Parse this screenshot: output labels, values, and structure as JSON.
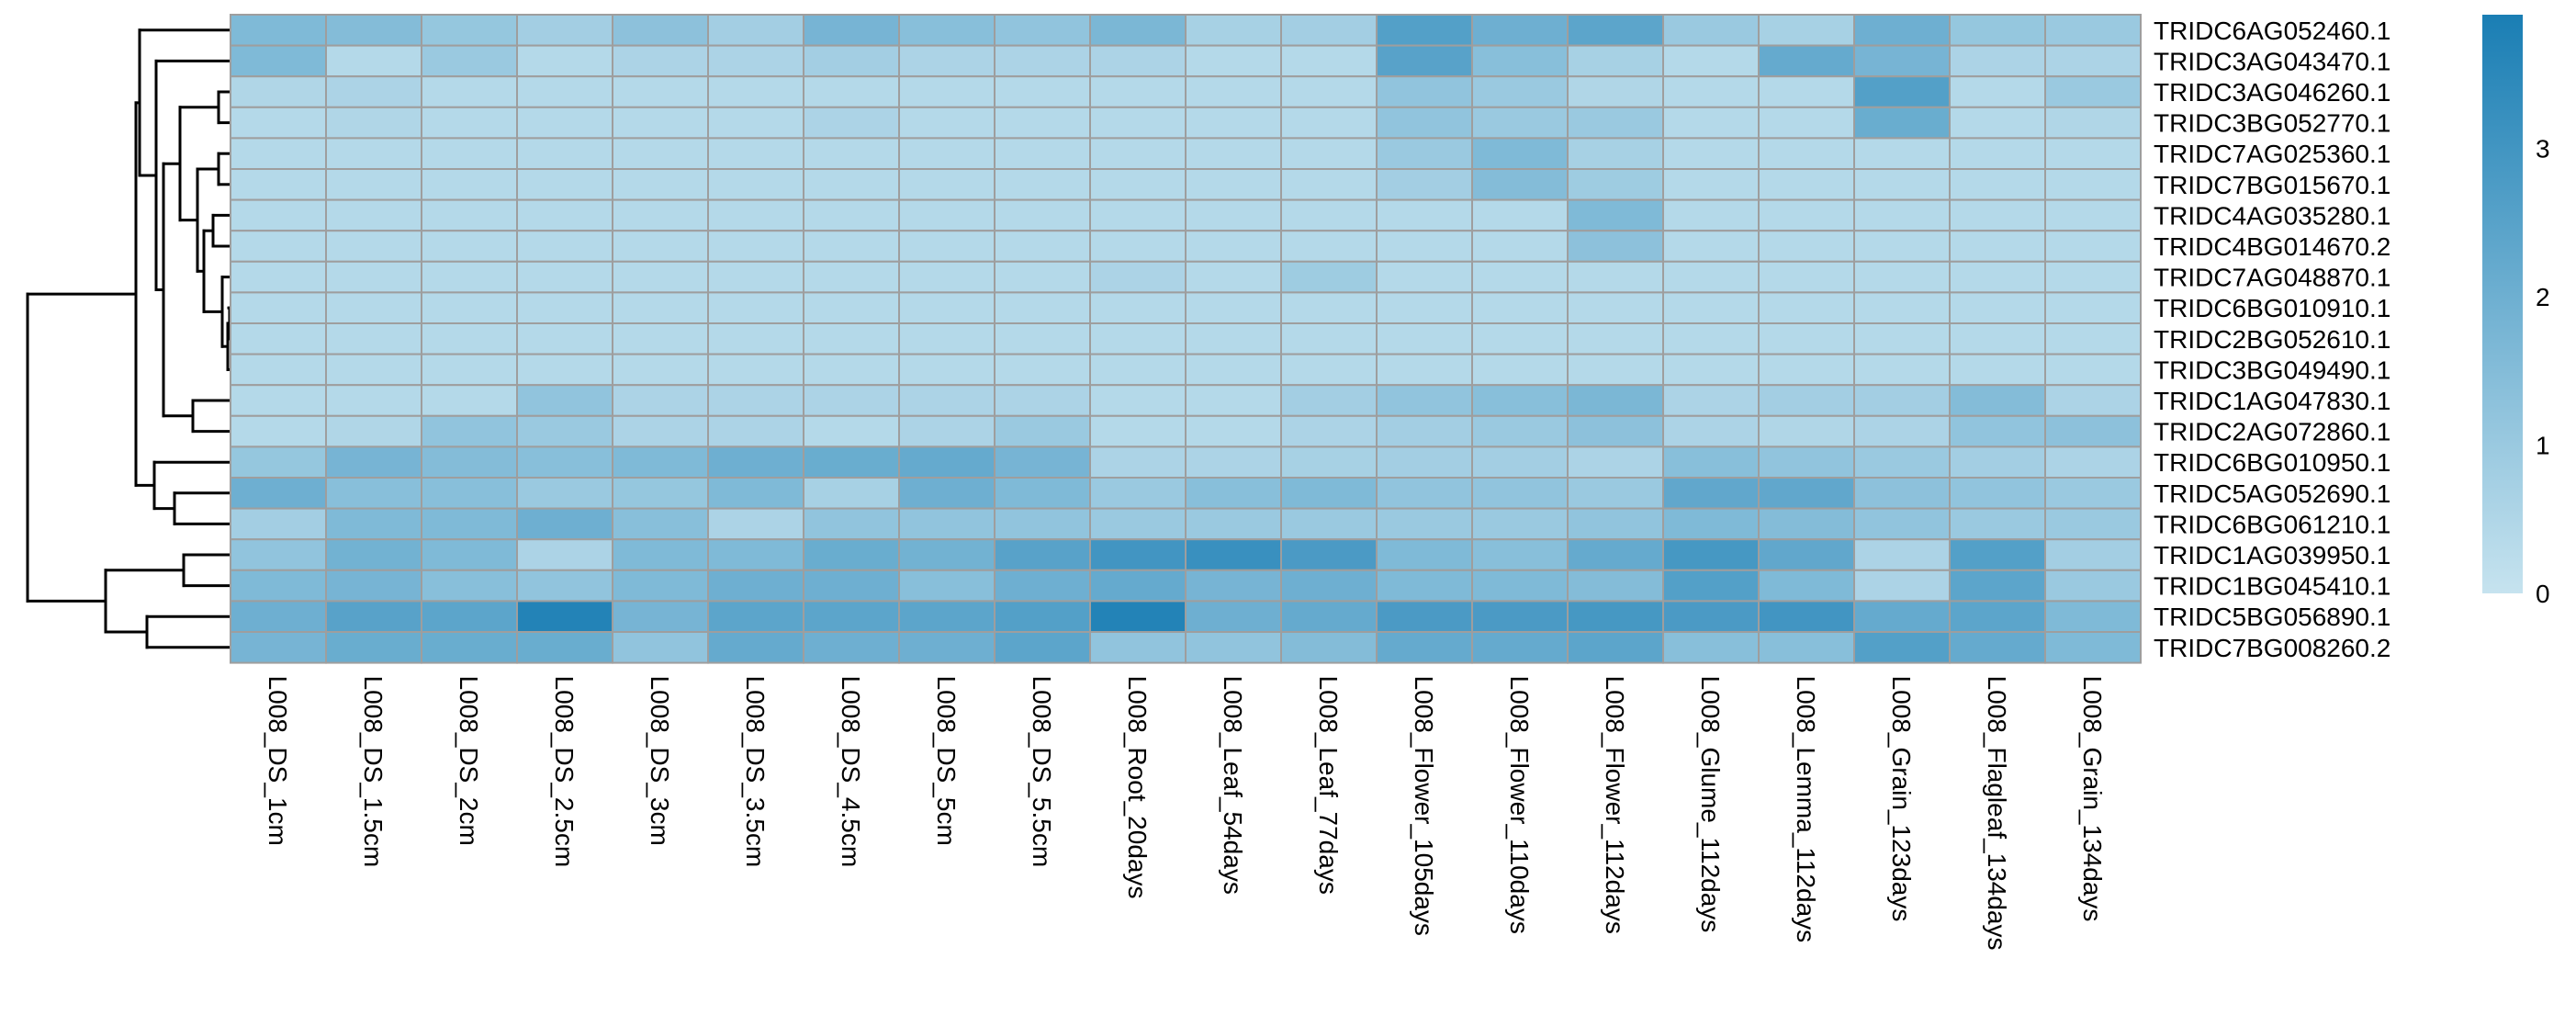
{
  "chart_data": {
    "type": "heatmap",
    "rows": [
      "TRIDC6AG052460.1",
      "TRIDC3AG043470.1",
      "TRIDC3AG046260.1",
      "TRIDC3BG052770.1",
      "TRIDC7AG025360.1",
      "TRIDC7BG015670.1",
      "TRIDC4AG035280.1",
      "TRIDC4BG014670.2",
      "TRIDC7AG048870.1",
      "TRIDC6BG010910.1",
      "TRIDC2BG052610.1",
      "TRIDC3BG049490.1",
      "TRIDC1AG047830.1",
      "TRIDC2AG072860.1",
      "TRIDC6BG010950.1",
      "TRIDC5AG052690.1",
      "TRIDC6BG061210.1",
      "TRIDC1AG039950.1",
      "TRIDC1BG045410.1",
      "TRIDC5BG056890.1",
      "TRIDC7BG008260.2"
    ],
    "columns": [
      "L008_DS_1cm",
      "L008_DS_1.5cm",
      "L008_DS_2cm",
      "L008_DS_2.5cm",
      "L008_DS_3cm",
      "L008_DS_3.5cm",
      "L008_DS_4.5cm",
      "L008_DS_5cm",
      "L008_DS_5.5cm",
      "L008_Root_20days",
      "L008_Leaf_54days",
      "L008_Leaf_77days",
      "L008_Flower_105days",
      "L008_Flower_110days",
      "L008_Flower_112days",
      "L008_Glume_112days",
      "L008_Lemma_112days",
      "L008_Grain_123days",
      "L008_Flagleaf_134days",
      "L008_Grain_134days"
    ],
    "values": [
      [
        1.6,
        1.5,
        1.1,
        0.8,
        1.3,
        0.8,
        1.8,
        1.4,
        1.2,
        1.7,
        0.7,
        0.8,
        2.6,
        2.0,
        2.4,
        1.0,
        0.7,
        2.0,
        1.1,
        1.0
      ],
      [
        1.6,
        0.4,
        1.0,
        0.4,
        0.6,
        0.6,
        0.8,
        0.6,
        0.6,
        0.6,
        0.4,
        0.4,
        2.5,
        1.4,
        0.7,
        0.4,
        2.2,
        1.8,
        0.6,
        0.6
      ],
      [
        0.5,
        0.6,
        0.4,
        0.4,
        0.4,
        0.4,
        0.4,
        0.4,
        0.4,
        0.4,
        0.4,
        0.4,
        1.2,
        1.0,
        0.5,
        0.4,
        0.4,
        2.6,
        0.4,
        1.0
      ],
      [
        0.4,
        0.5,
        0.4,
        0.4,
        0.4,
        0.4,
        0.6,
        0.4,
        0.4,
        0.4,
        0.4,
        0.4,
        1.2,
        1.0,
        1.0,
        0.4,
        0.4,
        2.1,
        0.4,
        0.5
      ],
      [
        0.4,
        0.4,
        0.4,
        0.4,
        0.4,
        0.4,
        0.4,
        0.4,
        0.4,
        0.4,
        0.4,
        0.4,
        1.0,
        1.6,
        0.7,
        0.4,
        0.4,
        0.4,
        0.4,
        0.4
      ],
      [
        0.4,
        0.4,
        0.4,
        0.4,
        0.4,
        0.4,
        0.4,
        0.4,
        0.4,
        0.4,
        0.4,
        0.4,
        0.8,
        1.5,
        0.9,
        0.4,
        0.4,
        0.4,
        0.4,
        0.4
      ],
      [
        0.4,
        0.4,
        0.4,
        0.4,
        0.4,
        0.4,
        0.4,
        0.4,
        0.4,
        0.4,
        0.4,
        0.4,
        0.4,
        0.4,
        1.6,
        0.4,
        0.4,
        0.4,
        0.4,
        0.4
      ],
      [
        0.4,
        0.4,
        0.4,
        0.4,
        0.4,
        0.4,
        0.4,
        0.4,
        0.4,
        0.4,
        0.4,
        0.4,
        0.4,
        0.4,
        1.3,
        0.4,
        0.4,
        0.4,
        0.4,
        0.4
      ],
      [
        0.4,
        0.4,
        0.4,
        0.4,
        0.4,
        0.4,
        0.4,
        0.4,
        0.4,
        0.6,
        0.4,
        0.9,
        0.4,
        0.4,
        0.4,
        0.4,
        0.4,
        0.4,
        0.4,
        0.4
      ],
      [
        0.4,
        0.4,
        0.4,
        0.4,
        0.4,
        0.4,
        0.4,
        0.4,
        0.4,
        0.4,
        0.4,
        0.4,
        0.4,
        0.4,
        0.4,
        0.4,
        0.4,
        0.4,
        0.4,
        0.4
      ],
      [
        0.4,
        0.4,
        0.4,
        0.4,
        0.4,
        0.4,
        0.4,
        0.4,
        0.4,
        0.4,
        0.4,
        0.4,
        0.4,
        0.4,
        0.4,
        0.4,
        0.4,
        0.4,
        0.4,
        0.4
      ],
      [
        0.4,
        0.4,
        0.4,
        0.4,
        0.4,
        0.4,
        0.4,
        0.4,
        0.4,
        0.4,
        0.4,
        0.4,
        0.4,
        0.4,
        0.4,
        0.4,
        0.4,
        0.4,
        0.4,
        0.4
      ],
      [
        0.4,
        0.4,
        0.4,
        1.2,
        0.6,
        0.6,
        0.6,
        0.6,
        0.6,
        0.4,
        0.4,
        0.8,
        1.2,
        1.4,
        1.7,
        0.6,
        0.8,
        0.8,
        1.5,
        0.6
      ],
      [
        0.4,
        0.5,
        1.2,
        1.0,
        0.6,
        0.6,
        0.4,
        0.6,
        1.0,
        0.4,
        0.4,
        0.6,
        0.8,
        1.0,
        1.3,
        0.6,
        0.5,
        0.6,
        1.2,
        1.3
      ],
      [
        1.1,
        1.8,
        1.5,
        1.4,
        1.6,
        2.0,
        2.1,
        2.2,
        1.8,
        0.6,
        0.6,
        0.7,
        0.8,
        0.8,
        0.6,
        1.4,
        1.2,
        1.0,
        0.8,
        0.6
      ],
      [
        2.0,
        1.4,
        1.4,
        1.0,
        1.1,
        1.6,
        0.7,
        2.0,
        1.6,
        1.0,
        1.4,
        1.6,
        1.2,
        1.2,
        1.0,
        2.3,
        2.3,
        1.3,
        1.2,
        1.0
      ],
      [
        0.8,
        1.6,
        1.6,
        2.0,
        1.4,
        0.6,
        1.2,
        1.2,
        1.2,
        1.0,
        1.0,
        1.0,
        1.0,
        1.0,
        1.2,
        1.6,
        1.5,
        1.2,
        1.0,
        1.0
      ],
      [
        1.2,
        1.9,
        1.6,
        0.6,
        1.6,
        1.6,
        2.1,
        1.9,
        2.5,
        3.0,
        3.2,
        2.8,
        1.6,
        1.4,
        2.2,
        2.9,
        2.3,
        0.6,
        2.6,
        0.8
      ],
      [
        1.6,
        1.8,
        1.4,
        1.2,
        1.6,
        2.0,
        2.0,
        1.4,
        2.0,
        2.2,
        1.8,
        2.0,
        1.6,
        1.6,
        1.5,
        2.6,
        1.6,
        0.6,
        2.4,
        1.0
      ],
      [
        2.0,
        2.5,
        2.4,
        3.7,
        1.8,
        2.4,
        2.4,
        2.4,
        2.6,
        3.7,
        2.0,
        2.2,
        2.8,
        2.8,
        2.9,
        2.8,
        3.0,
        2.2,
        2.4,
        1.6
      ],
      [
        1.8,
        2.1,
        2.1,
        2.1,
        1.2,
        2.2,
        2.0,
        2.0,
        2.4,
        1.2,
        1.2,
        1.5,
        2.2,
        2.2,
        2.4,
        1.4,
        1.4,
        2.6,
        2.2,
        1.6
      ]
    ],
    "legend": {
      "ticks": [
        "0",
        "1",
        "2",
        "3"
      ],
      "range": [
        0,
        3.9
      ],
      "color_low": "#c6e3ef",
      "color_high": "#1a7eb4"
    },
    "cell_border_color": "#9e9e9e",
    "row_dendrogram": true,
    "row_dendrogram_order": [
      "TRIDC6AG052460.1",
      "TRIDC3AG043470.1",
      "TRIDC3AG046260.1",
      "TRIDC3BG052770.1",
      "TRIDC7AG025360.1",
      "TRIDC7BG015670.1",
      "TRIDC4AG035280.1",
      "TRIDC4BG014670.2",
      "TRIDC7AG048870.1",
      "TRIDC6BG010910.1",
      "TRIDC2BG052610.1",
      "TRIDC3BG049490.1",
      "TRIDC1AG047830.1",
      "TRIDC2AG072860.1",
      "TRIDC6BG010950.1",
      "TRIDC5AG052690.1",
      "TRIDC6BG061210.1",
      "TRIDC1AG039950.1",
      "TRIDC1BG045410.1",
      "TRIDC5BG056890.1",
      "TRIDC7BG008260.2"
    ]
  }
}
